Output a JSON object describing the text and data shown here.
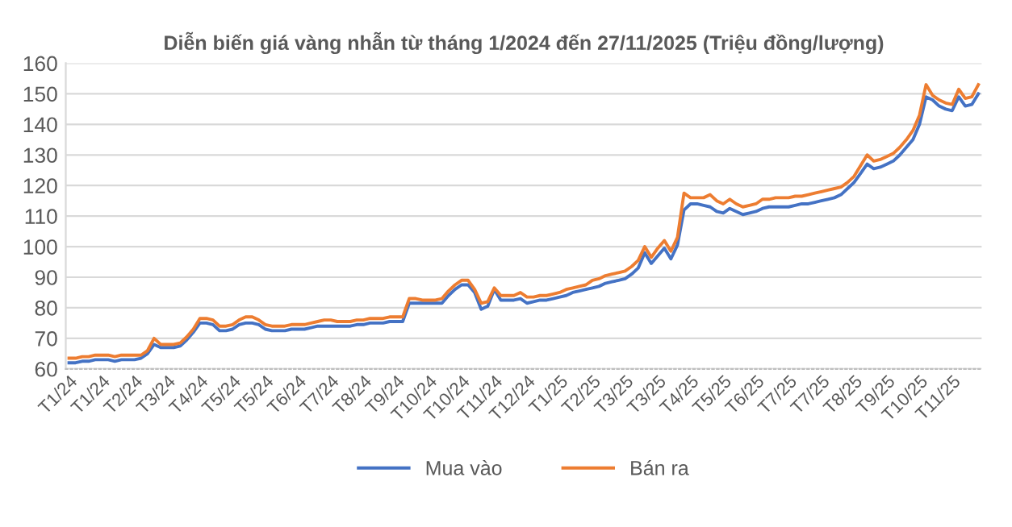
{
  "chart_data": {
    "type": "line",
    "title": "Diễn biến giá vàng nhẫn từ tháng 1/2024 đến 27/11/2025 (Triệu đồng/lượng)",
    "categories": [
      "T1/24",
      null,
      null,
      null,
      null,
      "T1/24",
      null,
      null,
      null,
      null,
      "T2/24",
      null,
      null,
      null,
      null,
      "T3/24",
      null,
      null,
      null,
      null,
      "T4/24",
      null,
      null,
      null,
      null,
      "T5/24",
      null,
      null,
      null,
      null,
      "T5/24",
      null,
      null,
      null,
      null,
      "T6/24",
      null,
      null,
      null,
      null,
      "T7/24",
      null,
      null,
      null,
      null,
      "T8/24",
      null,
      null,
      null,
      null,
      "T9/24",
      null,
      null,
      null,
      null,
      "T10/24",
      null,
      null,
      null,
      null,
      "T10/24",
      null,
      null,
      null,
      null,
      "T11/24",
      null,
      null,
      null,
      null,
      "T12/24",
      null,
      null,
      null,
      null,
      "T1/25",
      null,
      null,
      null,
      null,
      "T2/25",
      null,
      null,
      null,
      null,
      "T3/25",
      null,
      null,
      null,
      null,
      "T3/25",
      null,
      null,
      null,
      null,
      "T4/25",
      null,
      null,
      null,
      null,
      "T5/25",
      null,
      null,
      null,
      null,
      "T6/25",
      null,
      null,
      null,
      null,
      "T7/25",
      null,
      null,
      null,
      null,
      "T7/25",
      null,
      null,
      null,
      null,
      "T8/25",
      null,
      null,
      null,
      null,
      "T9/25",
      null,
      null,
      null,
      null,
      "T10/25",
      null,
      null,
      null,
      null,
      "T11/25",
      null,
      null,
      null,
      null
    ],
    "series": [
      {
        "name": "Mua vào",
        "color": "#4472c4",
        "values": [
          62,
          62,
          62.5,
          62.5,
          63,
          63,
          63,
          62.5,
          63,
          63,
          63,
          63.5,
          65,
          68,
          67,
          67,
          67,
          67.5,
          69.5,
          72,
          75,
          75,
          74.5,
          72.5,
          72.5,
          73,
          74.5,
          75,
          75,
          74.5,
          73,
          72.5,
          72.5,
          72.5,
          73,
          73,
          73,
          73.5,
          74,
          74,
          74,
          74,
          74,
          74,
          74.5,
          74.5,
          75,
          75,
          75,
          75.5,
          75.5,
          75.5,
          81.5,
          81.5,
          81.5,
          81.5,
          81.5,
          81.5,
          84,
          86,
          87.5,
          87.5,
          85,
          79.5,
          80.5,
          86,
          82.5,
          82.5,
          82.5,
          83,
          81.5,
          82,
          82.5,
          82.5,
          83,
          83.5,
          84,
          85,
          85.5,
          86,
          86.5,
          87,
          88,
          88.5,
          89,
          89.5,
          91,
          93,
          98,
          94.5,
          97,
          99.5,
          96,
          100.5,
          112,
          114,
          114,
          113.5,
          113,
          111.5,
          111,
          112.5,
          111.5,
          110.5,
          111,
          111.5,
          112.5,
          113,
          113,
          113,
          113,
          113.5,
          114,
          114,
          114.5,
          115,
          115.5,
          116,
          117,
          119,
          121,
          124,
          127,
          125.5,
          126,
          127,
          128,
          130,
          132.5,
          135,
          140,
          149,
          148,
          146,
          145,
          144.5,
          149,
          146,
          146.5,
          150
        ]
      },
      {
        "name": "Bán ra",
        "color": "#ed7d31",
        "values": [
          63.5,
          63.5,
          64,
          64,
          64.5,
          64.5,
          64.5,
          64,
          64.5,
          64.5,
          64.5,
          64.5,
          66,
          70,
          68,
          68,
          68,
          68.5,
          70.5,
          73,
          76.5,
          76.5,
          76,
          74,
          74,
          74.5,
          76,
          77,
          77,
          76,
          74.5,
          74,
          74,
          74,
          74.5,
          74.5,
          74.5,
          75,
          75.5,
          76,
          76,
          75.5,
          75.5,
          75.5,
          76,
          76,
          76.5,
          76.5,
          76.5,
          77,
          77,
          77,
          83,
          83,
          82.5,
          82.5,
          82.5,
          83,
          85.5,
          87.5,
          89,
          89,
          86,
          81.5,
          82,
          86.5,
          84,
          84,
          84,
          85,
          83.5,
          83.5,
          84,
          84,
          84.5,
          85,
          86,
          86.5,
          87,
          87.5,
          89,
          89.5,
          90.5,
          91,
          91.5,
          92,
          93.5,
          95.5,
          100,
          96.5,
          99.5,
          102,
          98.5,
          103,
          117.5,
          116,
          116,
          116,
          117,
          115,
          114,
          115.5,
          114,
          113,
          113.5,
          114,
          115.5,
          115.5,
          116,
          116,
          116,
          116.5,
          116.5,
          117,
          117.5,
          118,
          118.5,
          119,
          119.5,
          121,
          123,
          126.5,
          130,
          128,
          128.5,
          129.5,
          130.5,
          132.5,
          135,
          138,
          143,
          153,
          149.5,
          148,
          147,
          146.5,
          151.5,
          148.5,
          149,
          153
        ]
      }
    ],
    "ylim": [
      60,
      160
    ],
    "yticks": [
      60,
      70,
      80,
      90,
      100,
      110,
      120,
      130,
      140,
      150,
      160
    ],
    "grid": "y",
    "legend": "bottom",
    "marker": "none",
    "line_style": "solid"
  }
}
